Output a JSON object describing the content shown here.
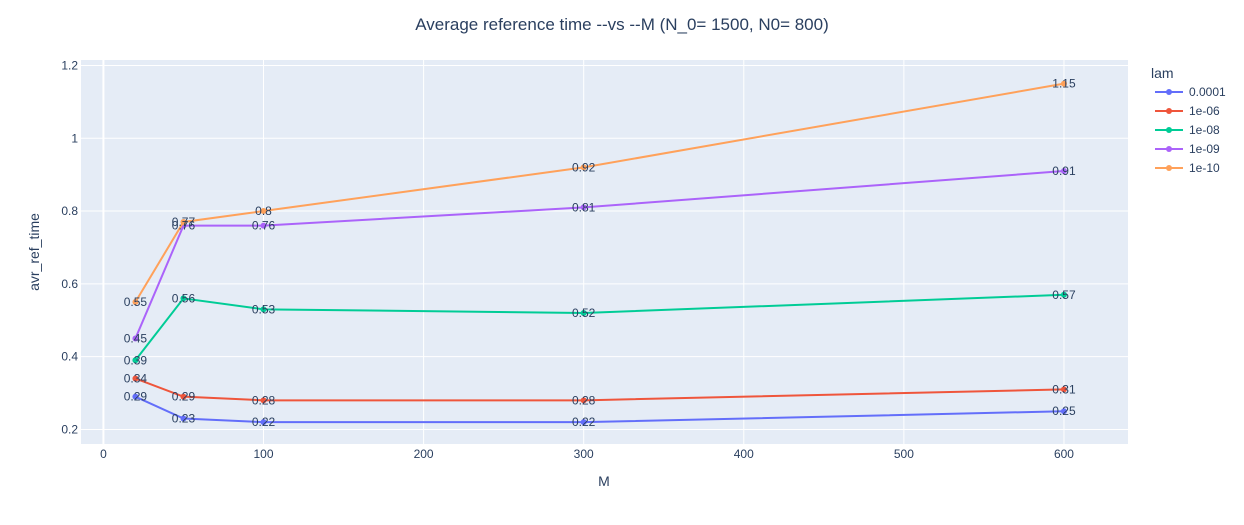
{
  "chart_data": {
    "type": "line",
    "title": "Average reference time --vs --M  (N_0= 1500, N0= 800)",
    "xlabel": "M",
    "ylabel": "avr_ref_time",
    "xlim": [
      -14,
      640
    ],
    "ylim": [
      0.16,
      1.215
    ],
    "xticks": [
      0,
      100,
      200,
      300,
      400,
      500,
      600
    ],
    "xtick_labels": [
      "0",
      "100",
      "200",
      "300",
      "400",
      "500",
      "600"
    ],
    "yticks": [
      0.2,
      0.4,
      0.6,
      0.8,
      1.0,
      1.2
    ],
    "ytick_labels": [
      "0.2",
      "0.4",
      "0.6",
      "0.8",
      "1",
      "1.2"
    ],
    "grid": true,
    "legend_title": "lam",
    "legend_position": "right",
    "x": [
      20,
      50,
      100,
      300,
      600
    ],
    "series": [
      {
        "name": "0.0001",
        "color": "#636efa",
        "values": [
          0.29,
          0.23,
          0.22,
          0.22,
          0.25
        ],
        "labels": [
          "0.29",
          "0.23",
          "0.22",
          "0.22",
          "0.25"
        ]
      },
      {
        "name": "1e-06",
        "color": "#EF553B",
        "values": [
          0.34,
          0.29,
          0.28,
          0.28,
          0.31
        ],
        "labels": [
          "0.34",
          "0.29",
          "0.28",
          "0.28",
          "0.31"
        ]
      },
      {
        "name": "1e-08",
        "color": "#00cc96",
        "values": [
          0.39,
          0.56,
          0.53,
          0.52,
          0.57
        ],
        "labels": [
          "0.39",
          "0.56",
          "0.53",
          "0.52",
          "0.57"
        ]
      },
      {
        "name": "1e-09",
        "color": "#ab63fa",
        "values": [
          0.45,
          0.76,
          0.76,
          0.81,
          0.91
        ],
        "labels": [
          "0.45",
          "0.76",
          "0.76",
          "0.81",
          "0.91"
        ]
      },
      {
        "name": "1e-10",
        "color": "#FFA15A",
        "values": [
          0.55,
          0.77,
          0.8,
          0.92,
          1.15
        ],
        "labels": [
          "0.55",
          "0.77",
          "0.8",
          "0.92",
          "1.15"
        ]
      }
    ]
  }
}
